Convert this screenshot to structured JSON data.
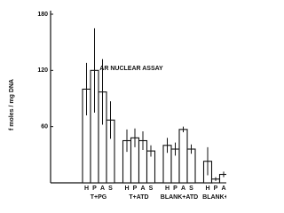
{
  "chart_data": {
    "type": "bar",
    "title": "AR NUCLEAR ASSAY",
    "y_label": "f moles / mg DNA",
    "categories": [
      "T+PG",
      "T+ATD",
      "BLANK+ATD",
      "BLANK+PG"
    ],
    "series": [
      {
        "name": "H",
        "color": "#ffffff",
        "values": [
          100,
          45,
          40,
          23
        ],
        "errors": [
          28,
          12,
          8,
          15
        ]
      },
      {
        "name": "P",
        "color": "#ffffff",
        "values": [
          120,
          48,
          36,
          4
        ],
        "errors": [
          45,
          10,
          7,
          2
        ]
      },
      {
        "name": "A",
        "color": "#ffffff",
        "values": [
          97,
          45,
          57,
          9
        ],
        "errors": [
          35,
          10,
          3,
          3
        ]
      },
      {
        "name": "S",
        "color": "#ffffff",
        "values": [
          67,
          34,
          36,
          6
        ],
        "errors": [
          20,
          6,
          5,
          2
        ]
      }
    ],
    "ylim": [
      0,
      180
    ],
    "yticks": [
      60,
      120,
      180
    ]
  }
}
